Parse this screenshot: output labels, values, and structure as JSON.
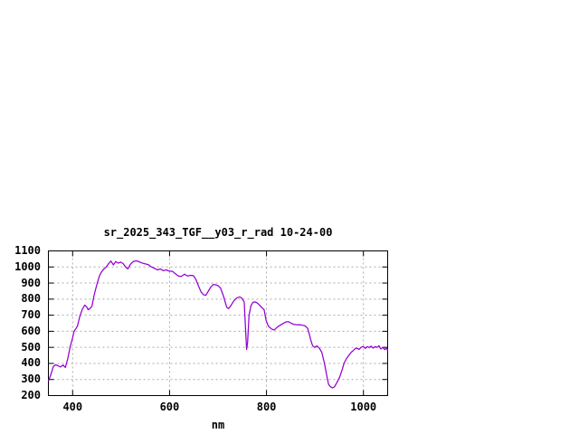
{
  "chart_data": {
    "type": "line",
    "title": "sr_2025_343_TGF__y03_r_rad 10-24-00",
    "xlabel": "nm",
    "ylabel": "",
    "xlim": [
      350,
      1050
    ],
    "ylim": [
      200,
      1100
    ],
    "xticks": [
      400,
      600,
      800,
      1000
    ],
    "yticks": [
      200,
      300,
      400,
      500,
      600,
      700,
      800,
      900,
      1000,
      1100
    ],
    "grid": true,
    "legend_position": "none",
    "colors": {
      "line": "#9400d3",
      "grid": "#aaaaaa",
      "border": "#000000",
      "background": "#ffffff",
      "text": "#000000"
    },
    "series": [
      {
        "name": "sr_2025_343_TGF__y03_r_rad",
        "x": [
          350,
          355,
          360,
          365,
          370,
          375,
          380,
          385,
          390,
          395,
          400,
          403,
          407,
          410,
          415,
          420,
          425,
          429,
          432,
          436,
          440,
          444,
          448,
          452,
          456,
          460,
          464,
          469,
          474,
          479,
          484,
          489,
          494,
          499,
          504,
          509,
          514,
          519,
          525,
          531,
          537,
          543,
          550,
          556,
          562,
          568,
          575,
          581,
          587,
          593,
          600,
          606,
          612,
          618,
          624,
          631,
          637,
          643,
          649,
          654,
          660,
          665,
          670,
          675,
          680,
          685,
          690,
          695,
          700,
          705,
          711,
          718,
          722,
          727,
          733,
          739,
          745,
          749,
          754,
          757,
          759,
          761,
          764,
          768,
          772,
          776,
          780,
          785,
          790,
          795,
          799,
          802,
          805,
          811,
          816,
          823,
          833,
          840,
          845,
          851,
          857,
          863,
          869,
          875,
          880,
          885,
          888,
          891,
          895,
          899,
          904,
          909,
          914,
          919,
          924,
          928,
          932,
          936,
          940,
          945,
          951,
          956,
          960,
          965,
          970,
          975,
          979,
          984,
          988,
          991,
          995,
          1000,
          1004,
          1008,
          1012,
          1016,
          1020,
          1024,
          1028,
          1032,
          1036,
          1040,
          1044,
          1048,
          1050
        ],
        "y": [
          290,
          330,
          380,
          392,
          385,
          378,
          390,
          375,
          430,
          505,
          560,
          600,
          618,
          633,
          695,
          737,
          763,
          752,
          734,
          742,
          757,
          820,
          868,
          912,
          950,
          971,
          986,
          999,
          1020,
          1037,
          1013,
          1034,
          1024,
          1030,
          1022,
          1001,
          988,
          1016,
          1034,
          1038,
          1033,
          1025,
          1019,
          1015,
          1001,
          993,
          982,
          988,
          977,
          982,
          974,
          973,
          958,
          944,
          941,
          955,
          944,
          948,
          946,
          925,
          880,
          845,
          827,
          824,
          850,
          875,
          891,
          889,
          884,
          870,
          821,
          749,
          741,
          762,
          791,
          808,
          814,
          806,
          782,
          600,
          487,
          530,
          700,
          760,
          780,
          783,
          778,
          765,
          748,
          735,
          670,
          645,
          628,
          613,
          608,
          628,
          646,
          658,
          660,
          650,
          642,
          640,
          641,
          637,
          633,
          618,
          586,
          549,
          511,
          500,
          509,
          495,
          470,
          408,
          330,
          270,
          255,
          248,
          253,
          280,
          315,
          360,
          400,
          430,
          450,
          470,
          480,
          495,
          492,
          487,
          500,
          505,
          494,
          505,
          498,
          508,
          495,
          505,
          500,
          510,
          490,
          500,
          486,
          495,
          480
        ]
      }
    ]
  }
}
